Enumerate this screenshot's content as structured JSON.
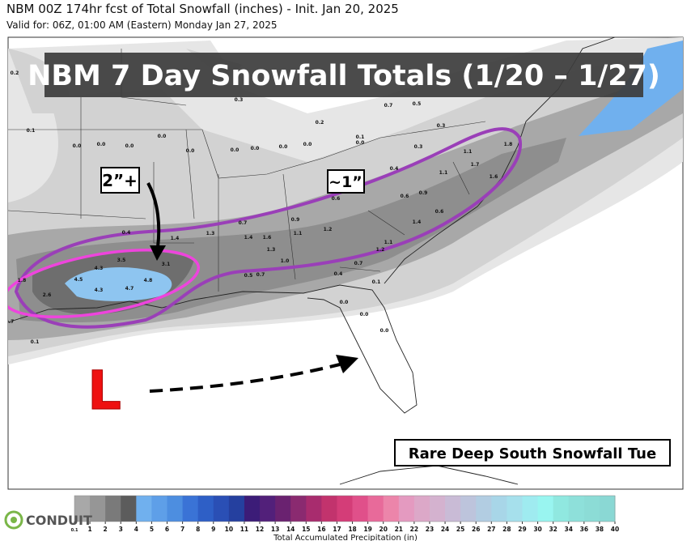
{
  "header": {
    "title": "NBM 00Z 174hr fcst of Total Snowfall (inches) - Init. Jan 20, 2025",
    "subtitle": "Valid for: 06Z, 01:00 AM (Eastern) Monday Jan 27, 2025"
  },
  "map": {
    "banner": "NBM 7 Day Snowfall Totals (1/20 – 1/27)",
    "callouts": [
      "2”+",
      "~1”"
    ],
    "low_label": "L",
    "caption": "Rare Deep South Snowfall Tue",
    "labels": [
      "0.2",
      "0.1",
      "0.0",
      "0.0",
      "0.0",
      "0.0",
      "0.0",
      "0.0",
      "0.0",
      "0.0",
      "0.0",
      "0.0",
      "0.3",
      "0.2",
      "0.1",
      "0.7",
      "0.5",
      "0.3",
      "0.3",
      "1.1",
      "1.7",
      "1.1",
      "1.6",
      "1.8",
      "0.4",
      "0.6",
      "0.6",
      "0.9",
      "1.4",
      "0.6",
      "0.7",
      "1.4",
      "1.6",
      "1.3",
      "1.2",
      "0.9",
      "1.1",
      "1.0",
      "1.1",
      "1.2",
      "0.7",
      "0.4",
      "1.3",
      "1.4",
      "0.4",
      "4.3",
      "3.5",
      "3.1",
      "4.5",
      "4.3",
      "4.7",
      "4.8",
      "2.6",
      "1.8",
      "0.7",
      "0.1",
      "0.5",
      "0.7",
      "0.0",
      "0.0",
      "0.0",
      "0.1"
    ]
  },
  "colorbar": {
    "title": "Total Accumulated Precipitation (in)",
    "ticks": [
      0.1,
      1,
      2,
      3,
      4,
      5,
      6,
      7,
      8,
      9,
      10,
      11,
      12,
      13,
      14,
      15,
      16,
      17,
      18,
      19,
      20,
      21,
      22,
      23,
      24,
      25,
      26,
      27,
      28,
      29,
      30,
      32,
      34,
      36,
      38,
      40
    ],
    "colors": [
      "#a8a8a8",
      "#969696",
      "#7a7a7a",
      "#5c5c5c",
      "#70b0ee",
      "#5e9fe8",
      "#4d8ee0",
      "#3a73d6",
      "#2e5fc6",
      "#2a4fb5",
      "#25409f",
      "#3c1c78",
      "#52207a",
      "#6a2270",
      "#8a2a70",
      "#a82c6e",
      "#c2336d",
      "#d43d78",
      "#e0508a",
      "#e86a9a",
      "#ec85aa",
      "#e49ac0",
      "#dca8c8",
      "#d4b2cf",
      "#c9bbd6",
      "#bdc4dc",
      "#b2cde2",
      "#a8d6e8",
      "#a6e0ec",
      "#9febf0",
      "#99f5f0",
      "#90e8e0",
      "#8ee0da",
      "#8cdcd6",
      "#8ad8d4"
    ]
  },
  "logo": "CONDUIT"
}
